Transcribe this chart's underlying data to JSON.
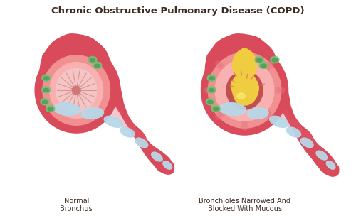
{
  "title": "Chronic Obstructive Pulmonary Disease (COPD)",
  "title_color": "#3d2b1f",
  "title_fontsize": 9.5,
  "bg_color": "#ffffff",
  "label_left": "Normal\nBronchus",
  "label_right": "Bronchioles Narrowed And\nBlocked With Mucous",
  "label_fontsize": 7.0,
  "label_color": "#3d2b1f",
  "colors": {
    "outer_tissue": "#d94a5a",
    "outer_tissue_mid": "#e06070",
    "outer_tissue_light": "#e87880",
    "inner_wall": "#f09090",
    "inner_lining": "#f8b0b0",
    "open_airway": "#f5c5c5",
    "airway_center": "#e89090",
    "cartilage": "#b8d8e8",
    "cartilage_dark": "#90bece",
    "goblet_outer": "#7abf7a",
    "goblet_inner": "#5a9f5a",
    "mucus_yellow": "#f0cc40",
    "mucus_dark": "#d4a820",
    "airway_blocked_bg": "#c05050",
    "airway_blocked_ring": "#e07060"
  }
}
